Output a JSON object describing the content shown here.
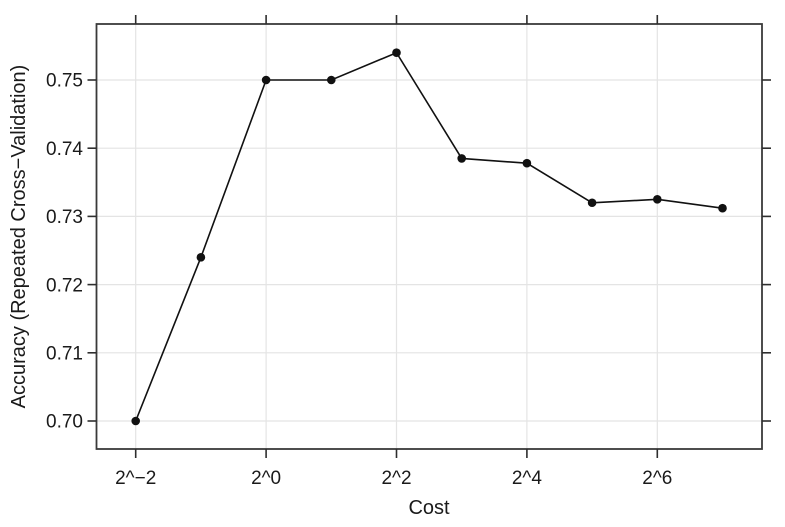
{
  "figure": {
    "background": "#ffffff"
  },
  "chart_data": {
    "type": "line",
    "title": "",
    "xlabel": "Cost",
    "ylabel": "Accuracy (Repeated Cross−Validation)",
    "x_scale": "log2",
    "x_log2": [
      -2,
      -1,
      0,
      1,
      2,
      3,
      4,
      5,
      6,
      7
    ],
    "x_values": [
      0.25,
      0.5,
      1,
      2,
      4,
      8,
      16,
      32,
      64,
      128
    ],
    "series": [
      {
        "name": "Accuracy (Repeated Cross-Validation)",
        "values": [
          0.7,
          0.724,
          0.75,
          0.75,
          0.754,
          0.7385,
          0.7378,
          0.732,
          0.7325,
          0.7312
        ]
      }
    ],
    "x_ticks": {
      "log2": [
        -2,
        0,
        2,
        4,
        6
      ],
      "labels": [
        "2^−2",
        "2^0",
        "2^2",
        "2^4",
        "2^6"
      ]
    },
    "y_ticks": {
      "values": [
        0.7,
        0.71,
        0.72,
        0.73,
        0.74,
        0.75
      ],
      "labels": [
        "0.70",
        "0.71",
        "0.72",
        "0.73",
        "0.74",
        "0.75"
      ]
    },
    "xlim_log2": [
      -2.6,
      7.64
    ],
    "ylim": [
      0.6959,
      0.7582
    ],
    "grid": "both",
    "legend": "none",
    "marker": "filled-circle",
    "colors": {
      "line": "#111111",
      "point": "#111111",
      "grid": "#e4e4e4",
      "frame": "#3a3a3a",
      "tick": "#2e2e2e",
      "text": "#1a1a1a"
    }
  }
}
